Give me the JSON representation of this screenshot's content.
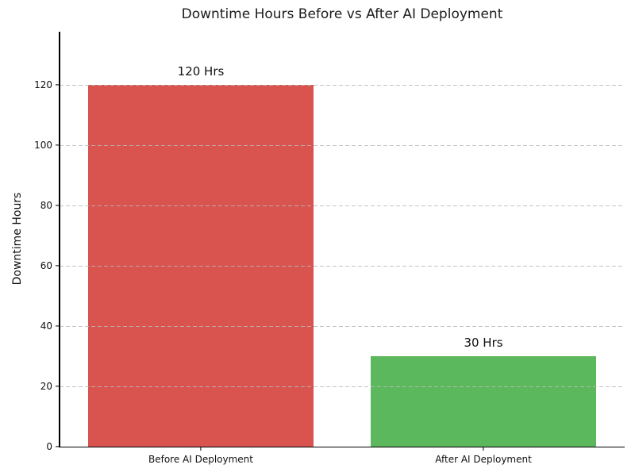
{
  "figure": {
    "background": "#ffffff"
  },
  "chart_data": {
    "type": "bar",
    "title": "Downtime Hours Before vs After AI Deployment",
    "xlabel": "",
    "ylabel": "Downtime Hours",
    "categories": [
      "Before AI Deployment",
      "After AI Deployment"
    ],
    "values": [
      120,
      30
    ],
    "value_labels": [
      "120 Hrs",
      "30 Hrs"
    ],
    "bar_colors": [
      "#d9534f",
      "#5cb85c"
    ],
    "yticks": [
      0,
      20,
      40,
      60,
      80,
      100,
      120
    ],
    "ylim": [
      0,
      137.5
    ],
    "bar_width_fraction": 0.8,
    "grid": "horizontal dashed",
    "grid_color": "#c9c9c9",
    "spine_color": "#000000",
    "legend": "none"
  }
}
